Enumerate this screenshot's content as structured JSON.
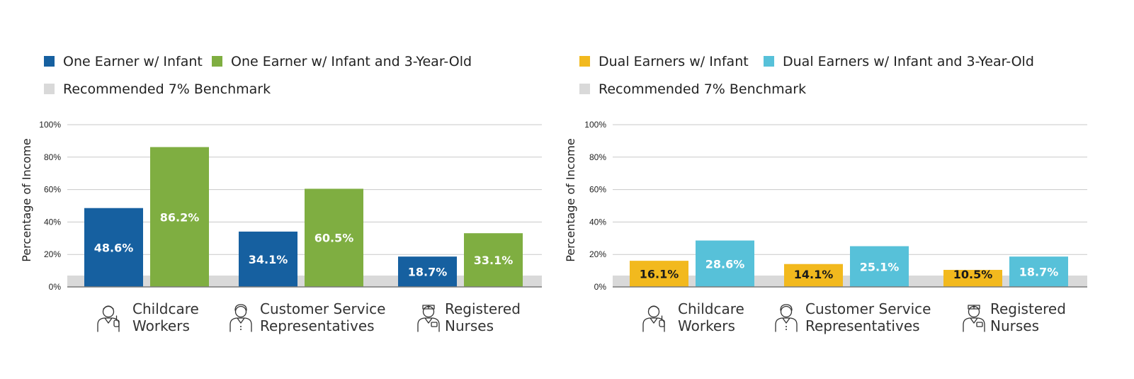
{
  "chart_data": [
    {
      "type": "bar",
      "ylabel": "Percentage of Income",
      "ylim": [
        0,
        100
      ],
      "yticks": [
        "0%",
        "20%",
        "40%",
        "60%",
        "80%",
        "100%"
      ],
      "grid": true,
      "legend_position": "top-left",
      "categories": [
        {
          "lines": [
            "Childcare",
            "Workers"
          ],
          "icon": "childcare-worker-icon"
        },
        {
          "lines": [
            "Customer Service",
            "Representatives"
          ],
          "icon": "customer-service-icon"
        },
        {
          "lines": [
            "Registered",
            "Nurses"
          ],
          "icon": "nurse-icon"
        }
      ],
      "series": [
        {
          "name": "One Earner w/ Infant",
          "color": "#1660a0",
          "label_color": "#ffffff",
          "values": [
            48.6,
            34.1,
            18.7
          ],
          "labels": [
            "48.6%",
            "34.1%",
            "18.7%"
          ]
        },
        {
          "name": "One Earner w/ Infant and 3-Year-Old",
          "color": "#7fae41",
          "label_color": "#ffffff",
          "values": [
            86.2,
            60.5,
            33.1
          ],
          "labels": [
            "86.2%",
            "60.5%",
            "33.1%"
          ]
        }
      ],
      "benchmark": {
        "name": "Recommended 7% Benchmark",
        "value": 7,
        "color": "#d9d9d9"
      }
    },
    {
      "type": "bar",
      "ylabel": "Percentage of Income",
      "ylim": [
        0,
        100
      ],
      "yticks": [
        "0%",
        "20%",
        "40%",
        "60%",
        "80%",
        "100%"
      ],
      "grid": true,
      "legend_position": "top-left",
      "categories": [
        {
          "lines": [
            "Childcare",
            "Workers"
          ],
          "icon": "childcare-worker-icon"
        },
        {
          "lines": [
            "Customer Service",
            "Representatives"
          ],
          "icon": "customer-service-icon"
        },
        {
          "lines": [
            "Registered",
            "Nurses"
          ],
          "icon": "nurse-icon"
        }
      ],
      "series": [
        {
          "name": "Dual Earners w/ Infant",
          "color": "#f2b91e",
          "label_color": "#1a1a1a",
          "values": [
            16.1,
            14.1,
            10.5
          ],
          "labels": [
            "16.1%",
            "14.1%",
            "10.5%"
          ]
        },
        {
          "name": "Dual Earners w/ Infant and 3-Year-Old",
          "color": "#57c1d9",
          "label_color": "#ffffff",
          "values": [
            28.6,
            25.1,
            18.7
          ],
          "labels": [
            "28.6%",
            "25.1%",
            "18.7%"
          ]
        }
      ],
      "benchmark": {
        "name": "Recommended 7% Benchmark",
        "value": 7,
        "color": "#d9d9d9"
      }
    }
  ]
}
